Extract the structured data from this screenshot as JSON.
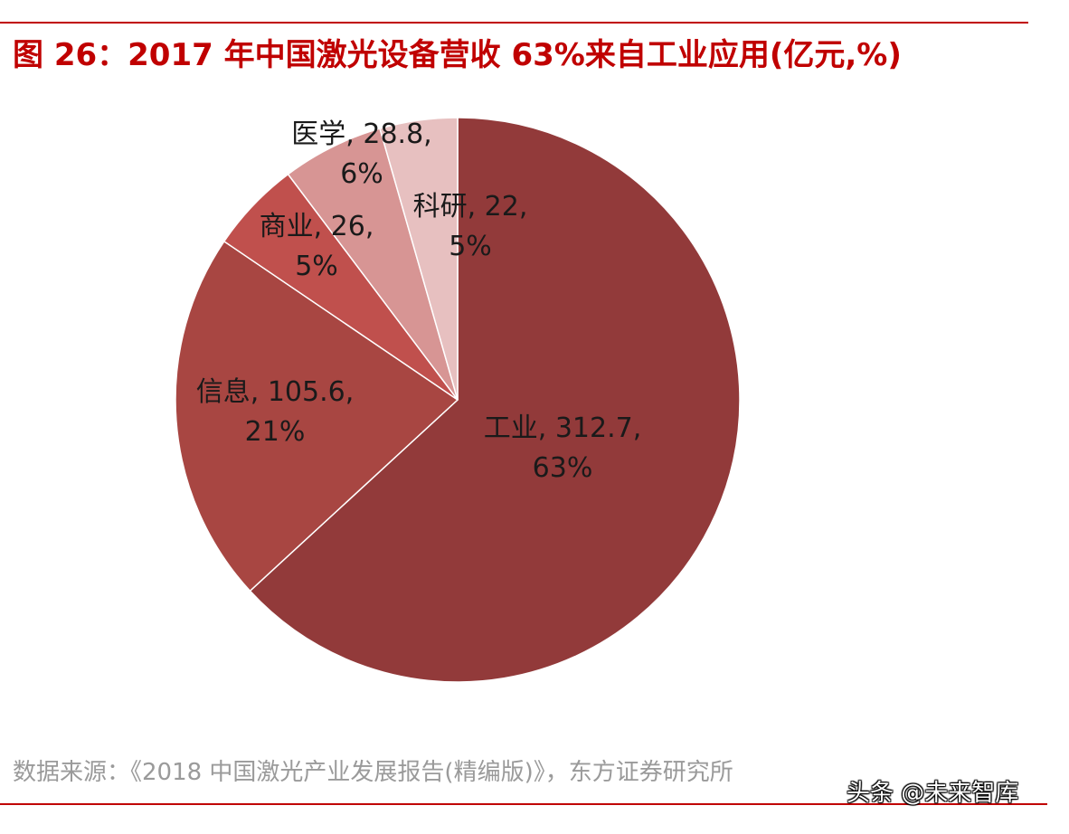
{
  "title": "图 26：2017 年中国激光设备营收 63%来自工业应用(亿元,%)",
  "source": "数据来源：《2018 中国激光产业发展报告(精编版)》，东方证券研究所",
  "watermark": "头条 @未来智库",
  "colors": {
    "accent": "#c00000",
    "source_text": "#9a9a9a"
  },
  "chart_data": {
    "type": "pie",
    "title": "图 26：2017 年中国激光设备营收 63%来自工业应用(亿元,%)",
    "start": "top, clockwise",
    "slices": [
      {
        "name": "工业",
        "value": 312.7,
        "percent": "63%",
        "color": "#923a3a",
        "line1": "工业, 312.7,",
        "line2": "63%"
      },
      {
        "name": "信息",
        "value": 105.6,
        "percent": "21%",
        "color": "#a84642",
        "line1": "信息, 105.6,",
        "line2": "21%"
      },
      {
        "name": "商业",
        "value": 26,
        "percent": "5%",
        "color": "#c0504d",
        "line1": "商业, 26,",
        "line2": "5%"
      },
      {
        "name": "医学",
        "value": 28.8,
        "percent": "6%",
        "color": "#d79594",
        "line1": "医学, 28.8,",
        "line2": "6%"
      },
      {
        "name": "科研",
        "value": 22,
        "percent": "5%",
        "color": "#e7c0c0",
        "line1": "科研, 22,",
        "line2": "5%"
      }
    ]
  }
}
